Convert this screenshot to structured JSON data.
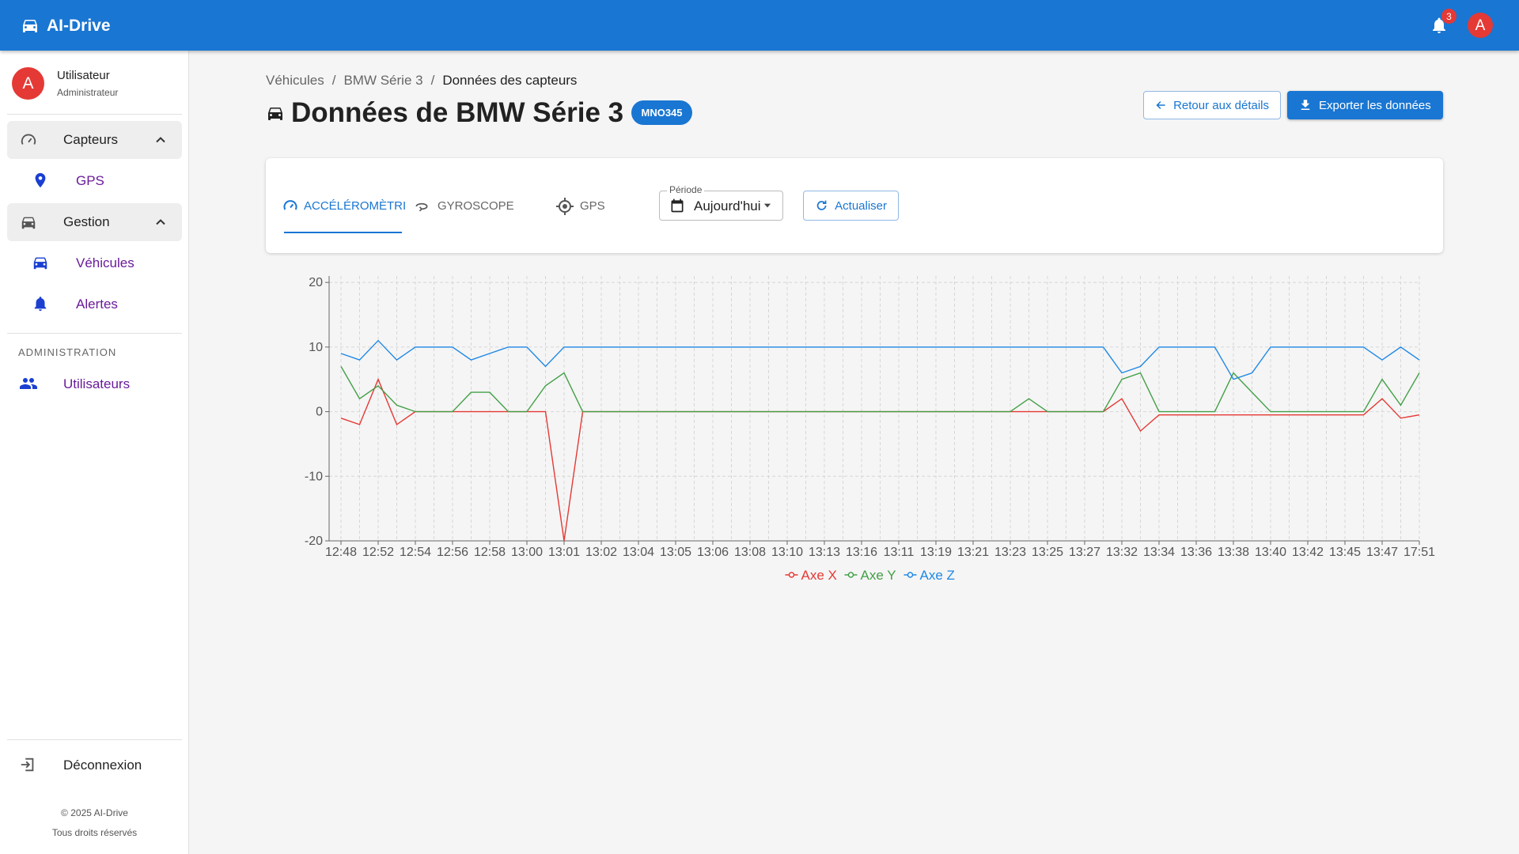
{
  "app_bar": {
    "title": "AI-Drive",
    "notification_count": 3,
    "avatar": "A"
  },
  "sidebar": {
    "user": {
      "avatar": "A",
      "name": "Utilisateur",
      "role": "Administrateur"
    },
    "nav": [
      "Capteurs",
      "GPS",
      "Gestion",
      "Véhicules",
      "Alertes"
    ],
    "section": "ADMINISTRATION",
    "admin_nav": [
      "Utilisateurs"
    ],
    "logout": "Déconnexion",
    "footer": [
      "© 2025 AI-Drive",
      "Tous droits réservés"
    ]
  },
  "breadcrumb": [
    "Véhicules",
    "BMW Série 3",
    "Données des capteurs"
  ],
  "breadcrumb_separator": "/",
  "page_title": "Données de BMW Série 3",
  "plate": "MNO345",
  "buttons": {
    "back": "Retour aux détails",
    "export": "Exporter les données"
  },
  "tabs": [
    "ACCÉLÉROMÈTRI",
    "GYROSCOPE",
    "GPS"
  ],
  "period": {
    "label": "Période",
    "value": "Aujourd'hui"
  },
  "refresh": "Actualiser",
  "chart_data": {
    "type": "line",
    "categories": [
      "12:48",
      null,
      "12:52",
      null,
      "12:54",
      null,
      "12:56",
      null,
      "12:58",
      null,
      "13:00",
      null,
      "13:01",
      null,
      "13:02",
      null,
      "13:04",
      null,
      "13:05",
      null,
      "13:06",
      null,
      "13:08",
      null,
      "13:10",
      null,
      "13:13",
      null,
      "13:16",
      null,
      "13:11",
      null,
      "13:19",
      null,
      "13:21",
      null,
      "13:23",
      null,
      "13:25",
      null,
      "13:27",
      null,
      "13:32",
      null,
      "13:34",
      null,
      "13:36",
      null,
      "13:38",
      null,
      "13:40",
      null,
      "13:42",
      null,
      "13:45",
      null,
      "13:47",
      null,
      "17:51"
    ],
    "series": [
      {
        "name": "Axe X",
        "color": "#e53935",
        "values": [
          -1,
          -2,
          5,
          -2,
          0,
          0,
          0,
          0,
          0,
          0,
          0,
          0,
          -20,
          0,
          0,
          0,
          0,
          0,
          0,
          0,
          0,
          0,
          0,
          0,
          0,
          0,
          0,
          0,
          0,
          0,
          0,
          0,
          0,
          0,
          0,
          0,
          0,
          0,
          0,
          0,
          0,
          0,
          2,
          -3,
          -0.5,
          -0.5,
          -0.5,
          -0.5,
          -0.5,
          -0.5,
          -0.5,
          -0.5,
          -0.5,
          -0.5,
          -0.5,
          -0.5,
          2,
          -1,
          -0.5
        ]
      },
      {
        "name": "Axe Y",
        "color": "#43a047",
        "values": [
          7,
          2,
          4,
          1,
          0,
          0,
          0,
          3,
          3,
          0,
          0,
          4,
          6,
          0,
          0,
          0,
          0,
          0,
          0,
          0,
          0,
          0,
          0,
          0,
          0,
          0,
          0,
          0,
          0,
          0,
          0,
          0,
          0,
          0,
          0,
          0,
          0,
          2,
          0,
          0,
          0,
          0,
          5,
          6,
          0,
          0,
          0,
          0,
          6,
          3,
          0,
          0,
          0,
          0,
          0,
          0,
          5,
          1,
          6
        ]
      },
      {
        "name": "Axe Z",
        "color": "#1e88e5",
        "values": [
          9,
          8,
          11,
          8,
          10,
          10,
          10,
          8,
          9,
          10,
          10,
          7,
          10,
          10,
          10,
          10,
          10,
          10,
          10,
          10,
          10,
          10,
          10,
          10,
          10,
          10,
          10,
          10,
          10,
          10,
          10,
          10,
          10,
          10,
          10,
          10,
          10,
          10,
          10,
          10,
          10,
          10,
          6,
          7,
          10,
          10,
          10,
          10,
          5,
          6,
          10,
          10,
          10,
          10,
          10,
          10,
          8,
          10,
          8
        ]
      }
    ],
    "ylim": [
      -20,
      21
    ],
    "yticks": [
      -20,
      -10,
      0,
      10,
      20
    ],
    "grid": true,
    "legend": "bottom"
  }
}
